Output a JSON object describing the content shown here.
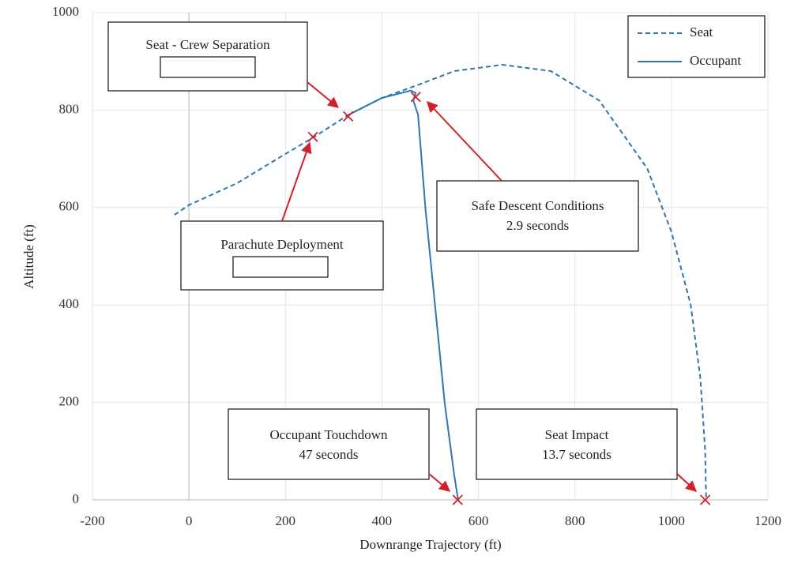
{
  "chart_data": {
    "type": "line",
    "x_label": "Downrange Trajectory (ft)",
    "y_label": "Altitude (ft)",
    "xlim": [
      -200,
      1200
    ],
    "ylim": [
      0,
      1000
    ],
    "xticks": [
      -200,
      0,
      200,
      400,
      600,
      800,
      1000,
      1200
    ],
    "yticks": [
      0,
      200,
      400,
      600,
      800,
      1000
    ],
    "grid": true,
    "legend": "top-right",
    "series": [
      {
        "name": "Seat",
        "color": "#2e75b6",
        "dashed": true,
        "x": [
          -30,
          0,
          100,
          200,
          260,
          330,
          400,
          470,
          550,
          650,
          750,
          850,
          950,
          1000,
          1040,
          1060,
          1070,
          1072
        ],
        "values": [
          585,
          605,
          650,
          710,
          745,
          790,
          825,
          850,
          880,
          893,
          880,
          820,
          680,
          550,
          400,
          250,
          100,
          0
        ]
      },
      {
        "name": "Occupant",
        "color": "#2e75b6",
        "dashed": false,
        "x": [
          330,
          400,
          460,
          470,
          465,
          475,
          490,
          510,
          530,
          550,
          558
        ],
        "values": [
          790,
          825,
          840,
          835,
          820,
          790,
          600,
          400,
          200,
          50,
          0
        ]
      }
    ],
    "annotations": [
      {
        "lines": [
          "Seat - Crew Separation"
        ],
        "point": {
          "x": 330,
          "y": 787
        }
      },
      {
        "lines": [
          "Parachute Deployment"
        ],
        "point": {
          "x": 257,
          "y": 745
        }
      },
      {
        "lines": [
          "Safe Descent Conditions",
          "2.9 seconds"
        ],
        "point": {
          "x": 470,
          "y": 827
        }
      },
      {
        "lines": [
          "Occupant Touchdown",
          "47 seconds"
        ],
        "point": {
          "x": 557,
          "y": 0
        }
      },
      {
        "lines": [
          "Seat Impact",
          "13.7 seconds"
        ],
        "point": {
          "x": 1070,
          "y": 0
        }
      }
    ]
  }
}
